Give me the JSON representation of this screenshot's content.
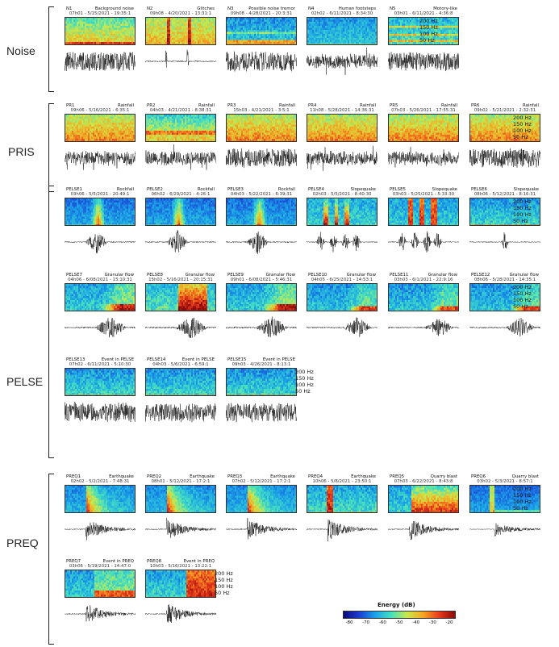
{
  "groups": [
    {
      "key": "noise",
      "label": "Noise",
      "panels": [
        {
          "id": "N1",
          "event": "Background noise",
          "meta": "07h01 - 5/15/2021 - 19:35:1",
          "spec": "noise",
          "wave": "dense"
        },
        {
          "id": "N2",
          "event": "Glitches",
          "meta": "09h08 - 4/20/2021 - 13:31:1",
          "spec": "glitch",
          "wave": "spike"
        },
        {
          "id": "N3",
          "event": "Possible noise tremor",
          "meta": "09h08 - 4/28/2021 - 20:3:31",
          "spec": "tremor",
          "wave": "dense"
        },
        {
          "id": "N4",
          "event": "Human footsteps",
          "meta": "02h02 - 6/11/2021 - 8:34:30",
          "spec": "quiet",
          "wave": "medium"
        },
        {
          "id": "N5",
          "event": "Motory-like",
          "meta": "03h01 - 6/11/2021 - 4:36:8",
          "spec": "motor",
          "wave": "dense"
        }
      ]
    },
    {
      "key": "pris",
      "label": "PRIS",
      "panels": [
        {
          "id": "PR1",
          "event": "Rainfall",
          "meta": "09h06 - 5/16/2021 - 6:35:1",
          "spec": "rain",
          "wave": "medium"
        },
        {
          "id": "PR2",
          "event": "Rainfall",
          "meta": "04h03 - 4/21/2021 - 8:38:31",
          "spec": "rain2",
          "wave": "medium"
        },
        {
          "id": "PR3",
          "event": "Rainfall",
          "meta": "15h03 - 4/21/2021 - 3:5:1",
          "spec": "rain",
          "wave": "dense"
        },
        {
          "id": "PR4",
          "event": "Rainfall",
          "meta": "11h08 - 5/28/2021 - 14:36:31",
          "spec": "rain",
          "wave": "medium"
        },
        {
          "id": "PR5",
          "event": "Rainfall",
          "meta": "07h03 - 5/26/2021 - 17:55:31",
          "spec": "rain",
          "wave": "medium"
        },
        {
          "id": "PR6",
          "event": "Rainfall",
          "meta": "09h02 - 5/21/2021 - 2:32:31",
          "spec": "rain",
          "wave": "dense"
        }
      ]
    },
    {
      "key": "pelse",
      "label": "PELSE",
      "panels": [
        {
          "id": "PELSE1",
          "event": "Rockfall",
          "meta": "03h06 - 5/5/2021 - 20:49:1",
          "spec": "burst",
          "wave": "burst"
        },
        {
          "id": "PELSE2",
          "event": "Rockfall",
          "meta": "06h02 - 6/29/2021 - 4:26:1",
          "spec": "burst",
          "wave": "burst"
        },
        {
          "id": "PELSE3",
          "event": "Rockfall",
          "meta": "04h03 - 5/22/2021 - 6:39:31",
          "spec": "burst",
          "wave": "burst"
        },
        {
          "id": "PELSE4",
          "event": "Slopequake",
          "meta": "02h03 - 5/5/2021 - 8:40:30",
          "spec": "slope",
          "wave": "multi"
        },
        {
          "id": "PELSE5",
          "event": "Slopequake",
          "meta": "03h03 - 5/25/2021 - 5:33:30",
          "spec": "slope2",
          "wave": "multi"
        },
        {
          "id": "PELSE6",
          "event": "Slopequake",
          "meta": "08h06 - 5/12/2021 - 8:16:31",
          "spec": "quietblue",
          "wave": "single"
        },
        {
          "id": "PELSE7",
          "event": "Granular flow",
          "meta": "04h06 - 6/08/2021 - 15:10:31",
          "spec": "flow",
          "wave": "flow"
        },
        {
          "id": "PELSE8",
          "event": "Granular flow",
          "meta": "15h02 - 5/16/2021 - 20:15:31",
          "spec": "flow2",
          "wave": "flow"
        },
        {
          "id": "PELSE9",
          "event": "Granular flow",
          "meta": "09h01 - 6/08/2021 - 5:46:31",
          "spec": "flow",
          "wave": "flow"
        },
        {
          "id": "PELSE10",
          "event": "Granular flow",
          "meta": "04h05 - 6/25/2021 - 14:53:1",
          "spec": "flowlate",
          "wave": "flowlate"
        },
        {
          "id": "PELSE11",
          "event": "Granular flow",
          "meta": "03h03 - 6/1/2021 - 22:9:16",
          "spec": "flowlate",
          "wave": "flowlate"
        },
        {
          "id": "PELSE12",
          "event": "Granular flow",
          "meta": "08h06 - 5/28/2021 - 14:35:1",
          "spec": "flowlate",
          "wave": "flowlate"
        },
        {
          "id": "PELSE13",
          "event": "Event in PELSE",
          "meta": "07h02 - 6/11/2021 - 5:10:30",
          "spec": "quietblue",
          "wave": "dense"
        },
        {
          "id": "PELSE14",
          "event": "Event in PELSE",
          "meta": "04h03 - 5/6/2021 - 6:59:1",
          "spec": "quietblue",
          "wave": "dense"
        },
        {
          "id": "PELSE15",
          "event": "Event in PELSE",
          "meta": "09h03 - 4/26/2021 - 8:13:1",
          "spec": "quietblue",
          "wave": "dense"
        }
      ]
    },
    {
      "key": "preq",
      "label": "PREQ",
      "panels": [
        {
          "id": "PREQ1",
          "event": "Earthquake",
          "meta": "02h02 - 5/2/2021 - 7:48:31",
          "spec": "quake",
          "wave": "quake"
        },
        {
          "id": "PREQ2",
          "event": "Earthquake",
          "meta": "08h01 - 5/12/2021 - 17:2:1",
          "spec": "quake",
          "wave": "quake"
        },
        {
          "id": "PREQ3",
          "event": "Earthquake",
          "meta": "07h02 - 5/12/2021 - 17:2:1",
          "spec": "quake",
          "wave": "quake"
        },
        {
          "id": "PREQ4",
          "event": "Earthquake",
          "meta": "10h06 - 5/8/2021 - 23:50:1",
          "spec": "quake2",
          "wave": "quake"
        },
        {
          "id": "PREQ5",
          "event": "Quarry blast",
          "meta": "07h03 - 6/22/2021 - 8:43:8",
          "spec": "blast",
          "wave": "quake"
        },
        {
          "id": "PREQ6",
          "event": "Quarry blast",
          "meta": "03h02 - 5/3/2021 - 8:57:1",
          "spec": "blast2",
          "wave": "quakesmall"
        },
        {
          "id": "PREQ7",
          "event": "Event in PREQ",
          "meta": "03h06 - 5/19/2021 - 14:47:0",
          "spec": "preq7",
          "wave": "quake"
        },
        {
          "id": "PREQ8",
          "event": "Event in PREQ",
          "meta": "10h03 - 5/16/2021 - 13:22:1",
          "spec": "preq8",
          "wave": "quake"
        }
      ]
    }
  ],
  "freq_labels": [
    "200 Hz",
    "150 Hz",
    "100 Hz",
    "50 Hz"
  ],
  "colorbar": {
    "title": "Energy (dB)",
    "ticks": [
      "-80",
      "-70",
      "-60",
      "-50",
      "-40",
      "-30",
      "-20"
    ],
    "colors": [
      "#0a0a7a",
      "#1d3fd6",
      "#1aa3e8",
      "#45e0c0",
      "#c9e84a",
      "#f5a623",
      "#e83a1c",
      "#8a0a0a"
    ]
  }
}
